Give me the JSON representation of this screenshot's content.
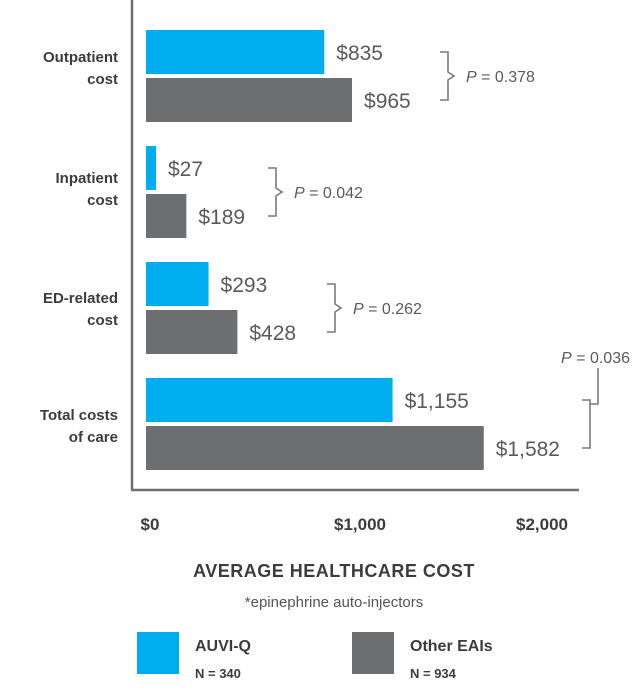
{
  "chart_data": {
    "type": "bar",
    "orientation": "horizontal",
    "categories": [
      "Outpatient cost",
      "Inpatient cost",
      "ED-related cost",
      "Total costs of care"
    ],
    "category_lines": [
      [
        "Outpatient",
        "cost"
      ],
      [
        "Inpatient",
        "cost"
      ],
      [
        "ED-related",
        "cost"
      ],
      [
        "Total costs",
        "of care"
      ]
    ],
    "series": [
      {
        "name": "AUVI-Q",
        "sample": "N = 340",
        "color": "#00AEEF",
        "values": [
          835,
          27,
          293,
          1155
        ],
        "labels": [
          "$835",
          "$27",
          "$293",
          "$1,155"
        ]
      },
      {
        "name": "Other EAIs",
        "sample": "N = 934",
        "color": "#6D6E70",
        "values": [
          965,
          189,
          428,
          1582
        ],
        "labels": [
          "$965",
          "$189",
          "$428",
          "$1,582"
        ]
      }
    ],
    "p_values": [
      "0.378",
      "0.042",
      "0.262",
      "0.036"
    ],
    "p_prefix": "P",
    "xlabel": "AVERAGE HEALTHCARE COST",
    "x_ticks": [
      "$0",
      "$1,000",
      "$2,000"
    ],
    "x_tick_values": [
      0,
      1000,
      2000
    ],
    "xlim": [
      0,
      2000
    ],
    "footnote": "*epinephrine auto-injectors",
    "grid": false,
    "legend_position": "bottom"
  },
  "colors": {
    "auvi_q": "#00AEEF",
    "other_eais": "#6D6E70",
    "axis": "#6D6E70"
  }
}
